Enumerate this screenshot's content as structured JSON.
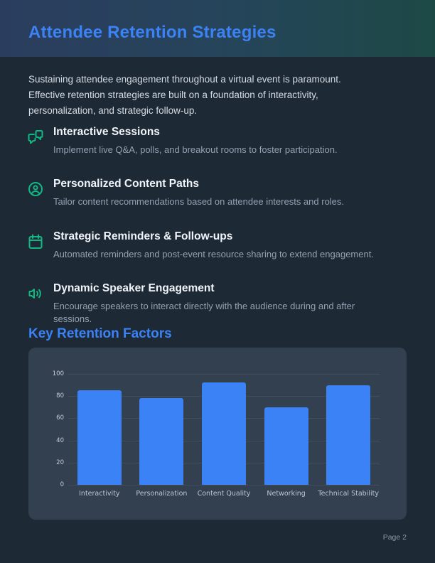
{
  "page": {
    "title": "Attendee Retention Strategies",
    "footer": "Page 2"
  },
  "intro": "Sustaining attendee engagement throughout a virtual event is paramount. Effective retention strategies are built on a foundation of interactivity, personalization, and strategic follow-up.",
  "items": [
    {
      "icon": "chat-bubbles-icon",
      "title": "Interactive Sessions",
      "description": "Implement live Q&A, polls, and breakout rooms to foster participation."
    },
    {
      "icon": "user-circle-icon",
      "title": "Personalized Content Paths",
      "description": "Tailor content recommendations based on attendee interests and roles."
    },
    {
      "icon": "calendar-icon",
      "title": "Strategic Reminders & Follow-ups",
      "description": "Automated reminders and post-event resource sharing to extend engagement."
    },
    {
      "icon": "speaker-volume-icon",
      "title": "Dynamic Speaker Engagement",
      "description": "Encourage speakers to interact directly with the audience during and after sessions."
    }
  ],
  "section_heading": "Key Retention Factors",
  "chart_data": {
    "type": "bar",
    "categories": [
      "Interactivity",
      "Personalization",
      "Content Quality",
      "Networking",
      "Technical Stability"
    ],
    "values": [
      85,
      78,
      92,
      70,
      90
    ],
    "title": "Key Retention Factors",
    "xlabel": "",
    "ylabel": "",
    "ylim": [
      0,
      100
    ],
    "yticks": [
      0,
      20,
      40,
      60,
      80,
      100
    ],
    "grid": true,
    "legend": false,
    "bar_color": "#3b82f6"
  },
  "colors": {
    "accent_blue": "#3b82f6",
    "icon_green": "#10b981",
    "page_bg": "#1e2936",
    "card_bg": "#334050",
    "header_gradient_start": "#2b3d5f",
    "header_gradient_end": "#1d4945"
  }
}
